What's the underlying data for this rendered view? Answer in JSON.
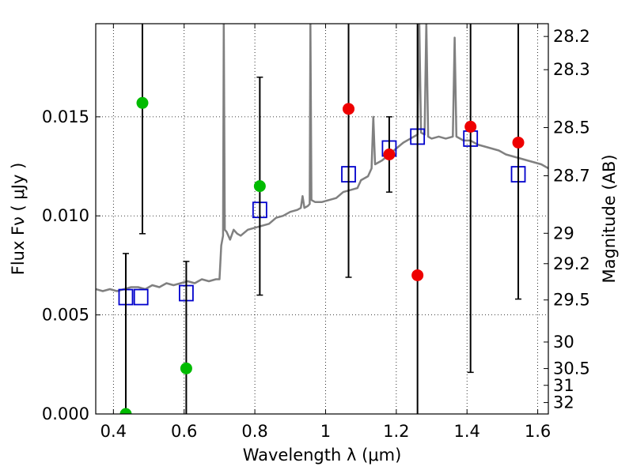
{
  "chart_data": {
    "type": "scatter",
    "xlabel": "Wavelength  λ (μm)",
    "ylabel": "Flux  Fν  ( μJy )",
    "y2label": "Magnitude (AB)",
    "xlim": [
      0.35,
      1.63
    ],
    "ylim": [
      0.0,
      0.0197
    ],
    "grid": true,
    "x_ticks": [
      {
        "value": 0.4,
        "label": "0.4"
      },
      {
        "value": 0.6,
        "label": "0.6"
      },
      {
        "value": 0.8,
        "label": "0.8"
      },
      {
        "value": 1.0,
        "label": "1"
      },
      {
        "value": 1.2,
        "label": "1.2"
      },
      {
        "value": 1.4,
        "label": "1.4"
      },
      {
        "value": 1.6,
        "label": "1.6"
      }
    ],
    "y_ticks": [
      {
        "value": 0.0,
        "label": "0.000"
      },
      {
        "value": 0.005,
        "label": "0.005"
      },
      {
        "value": 0.01,
        "label": "0.010"
      },
      {
        "value": 0.015,
        "label": "0.015"
      }
    ],
    "mag_ticks": [
      {
        "mag": 28.2,
        "label": "28.2"
      },
      {
        "mag": 28.3,
        "label": "28.3"
      },
      {
        "mag": 28.5,
        "label": "28.5"
      },
      {
        "mag": 28.7,
        "label": "28.7"
      },
      {
        "mag": 29.0,
        "label": "29"
      },
      {
        "mag": 29.2,
        "label": "29.2"
      },
      {
        "mag": 29.5,
        "label": "29.5"
      },
      {
        "mag": 30.0,
        "label": "30"
      },
      {
        "mag": 30.5,
        "label": "30.5"
      },
      {
        "mag": 31.0,
        "label": "31"
      },
      {
        "mag": 32.0,
        "label": "32"
      }
    ],
    "series": [
      {
        "name": "model-spectrum",
        "kind": "line",
        "color": "#808080",
        "points": [
          [
            0.35,
            0.0063
          ],
          [
            0.37,
            0.0062
          ],
          [
            0.39,
            0.0063
          ],
          [
            0.41,
            0.0062
          ],
          [
            0.43,
            0.0063
          ],
          [
            0.45,
            0.0064
          ],
          [
            0.47,
            0.0064
          ],
          [
            0.49,
            0.0063
          ],
          [
            0.51,
            0.0065
          ],
          [
            0.53,
            0.0064
          ],
          [
            0.55,
            0.0066
          ],
          [
            0.57,
            0.0065
          ],
          [
            0.59,
            0.0066
          ],
          [
            0.61,
            0.0067
          ],
          [
            0.63,
            0.0066
          ],
          [
            0.65,
            0.0068
          ],
          [
            0.67,
            0.0067
          ],
          [
            0.69,
            0.0068
          ],
          [
            0.7,
            0.0068
          ],
          [
            0.705,
            0.0085
          ],
          [
            0.71,
            0.009
          ],
          [
            0.712,
            0.0198
          ],
          [
            0.715,
            0.0093
          ],
          [
            0.72,
            0.0092
          ],
          [
            0.73,
            0.0088
          ],
          [
            0.74,
            0.0093
          ],
          [
            0.75,
            0.0091
          ],
          [
            0.76,
            0.009
          ],
          [
            0.78,
            0.0093
          ],
          [
            0.8,
            0.0094
          ],
          [
            0.82,
            0.0095
          ],
          [
            0.84,
            0.0096
          ],
          [
            0.86,
            0.0099
          ],
          [
            0.88,
            0.01
          ],
          [
            0.9,
            0.0102
          ],
          [
            0.92,
            0.0103
          ],
          [
            0.93,
            0.0104
          ],
          [
            0.935,
            0.011
          ],
          [
            0.94,
            0.0104
          ],
          [
            0.95,
            0.0105
          ],
          [
            0.955,
            0.0106
          ],
          [
            0.957,
            0.0198
          ],
          [
            0.96,
            0.0108
          ],
          [
            0.97,
            0.0107
          ],
          [
            0.99,
            0.0107
          ],
          [
            1.01,
            0.0108
          ],
          [
            1.03,
            0.0109
          ],
          [
            1.05,
            0.0112
          ],
          [
            1.07,
            0.0113
          ],
          [
            1.09,
            0.0114
          ],
          [
            1.1,
            0.0118
          ],
          [
            1.12,
            0.012
          ],
          [
            1.13,
            0.0124
          ],
          [
            1.135,
            0.015
          ],
          [
            1.14,
            0.0126
          ],
          [
            1.16,
            0.0128
          ],
          [
            1.18,
            0.0131
          ],
          [
            1.2,
            0.0134
          ],
          [
            1.22,
            0.0137
          ],
          [
            1.24,
            0.0139
          ],
          [
            1.25,
            0.014
          ],
          [
            1.26,
            0.0141
          ],
          [
            1.265,
            0.0198
          ],
          [
            1.27,
            0.0142
          ],
          [
            1.28,
            0.0141
          ],
          [
            1.285,
            0.0198
          ],
          [
            1.29,
            0.014
          ],
          [
            1.3,
            0.0139
          ],
          [
            1.32,
            0.014
          ],
          [
            1.34,
            0.0139
          ],
          [
            1.36,
            0.014
          ],
          [
            1.365,
            0.019
          ],
          [
            1.37,
            0.014
          ],
          [
            1.39,
            0.0138
          ],
          [
            1.41,
            0.0138
          ],
          [
            1.43,
            0.0136
          ],
          [
            1.45,
            0.0135
          ],
          [
            1.47,
            0.0134
          ],
          [
            1.49,
            0.0133
          ],
          [
            1.51,
            0.0131
          ],
          [
            1.53,
            0.013
          ],
          [
            1.55,
            0.0129
          ],
          [
            1.57,
            0.0128
          ],
          [
            1.59,
            0.0127
          ],
          [
            1.61,
            0.0126
          ],
          [
            1.63,
            0.0124
          ]
        ]
      },
      {
        "name": "model-band-flux",
        "kind": "open-square",
        "color": "#0000cc",
        "points": [
          [
            0.435,
            0.0059
          ],
          [
            0.478,
            0.0059
          ],
          [
            0.606,
            0.0061
          ],
          [
            0.814,
            0.0103
          ],
          [
            1.065,
            0.0121
          ],
          [
            1.18,
            0.0134
          ],
          [
            1.26,
            0.014
          ],
          [
            1.41,
            0.0139
          ],
          [
            1.545,
            0.0121
          ]
        ]
      },
      {
        "name": "observed-optical",
        "kind": "filled-circle",
        "color": "#00bb00",
        "points": [
          {
            "x": 0.435,
            "y": 0.0,
            "low": 0.0,
            "high": 0.0081
          },
          {
            "x": 0.482,
            "y": 0.0157,
            "low": 0.0091,
            "high": 0.0197
          },
          {
            "x": 0.606,
            "y": 0.0023,
            "low": 0.0,
            "high": 0.0077
          },
          {
            "x": 0.814,
            "y": 0.0115,
            "low": 0.006,
            "high": 0.017
          }
        ]
      },
      {
        "name": "observed-infrared",
        "kind": "filled-circle",
        "color": "#ee0000",
        "points": [
          {
            "x": 1.065,
            "y": 0.0154,
            "low": 0.0069,
            "high": 0.0197
          },
          {
            "x": 1.18,
            "y": 0.0131,
            "low": 0.0112,
            "high": 0.015
          },
          {
            "x": 1.26,
            "y": 0.007,
            "low": 0.0,
            "high": 0.0197
          },
          {
            "x": 1.41,
            "y": 0.0145,
            "low": 0.0021,
            "high": 0.0197
          },
          {
            "x": 1.545,
            "y": 0.0137,
            "low": 0.0058,
            "high": 0.0197
          }
        ]
      }
    ]
  }
}
